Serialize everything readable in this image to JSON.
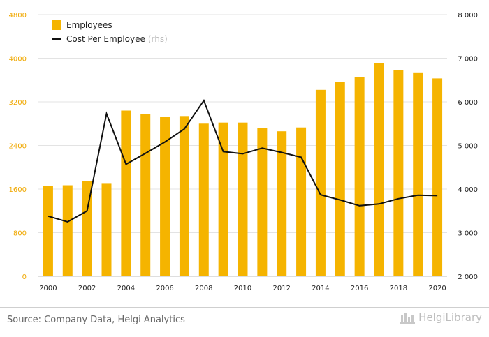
{
  "chart_data": {
    "type": "bar+line",
    "x": [
      2000,
      2001,
      2002,
      2003,
      2004,
      2005,
      2006,
      2007,
      2008,
      2009,
      2010,
      2011,
      2012,
      2013,
      2014,
      2015,
      2016,
      2017,
      2018,
      2019,
      2020
    ],
    "x_tick_labels": [
      "2000",
      "2002",
      "2004",
      "2006",
      "2008",
      "2010",
      "2012",
      "2014",
      "2016",
      "2018",
      "2020"
    ],
    "series": [
      {
        "name": "Employees",
        "kind": "bar",
        "axis": "left",
        "color": "#f5b400",
        "values": [
          1660,
          1670,
          1750,
          1710,
          3040,
          2980,
          2930,
          2940,
          2800,
          2820,
          2820,
          2720,
          2660,
          2730,
          3420,
          3560,
          3650,
          3910,
          3780,
          3740,
          3630
        ]
      },
      {
        "name": "Cost Per Employee",
        "name_suffix": "(rhs)",
        "kind": "line",
        "axis": "right",
        "color": "#111111",
        "values": [
          3380,
          3250,
          3500,
          5730,
          4570,
          4820,
          5080,
          5380,
          6030,
          4860,
          4810,
          4940,
          4840,
          4730,
          3870,
          3750,
          3620,
          3660,
          3780,
          3860,
          3850
        ]
      }
    ],
    "left_axis": {
      "min": 0,
      "max": 4800,
      "ticks": [
        "0",
        "800",
        "1600",
        "2400",
        "3200",
        "4000",
        "4800"
      ],
      "color": "#f0a800"
    },
    "right_axis": {
      "min": 2000,
      "max": 8000,
      "ticks": [
        "2 000",
        "3 000",
        "4 000",
        "5 000",
        "6 000",
        "7 000",
        "8 000"
      ]
    },
    "legend_position": "top-left",
    "grid": "horizontal"
  },
  "footer": {
    "source": "Source: Company Data, Helgi Analytics",
    "brand": "HelgiLibrary"
  }
}
